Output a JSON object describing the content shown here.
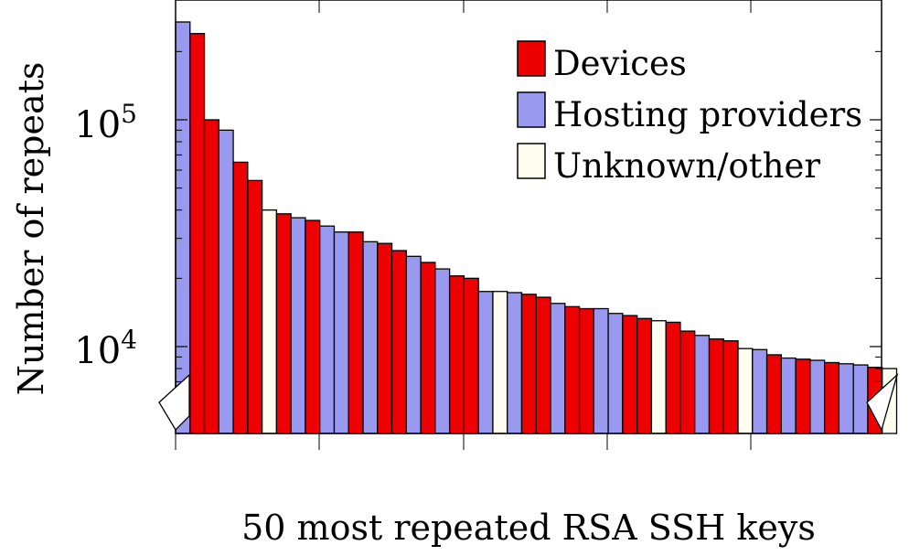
{
  "chart_data": {
    "type": "bar",
    "title": "",
    "xlabel": "50 most repeated RSA SSH keys",
    "ylabel": "Number of repeats",
    "yscale": "log",
    "ylim": [
      4200,
      270000
    ],
    "ytick_labels": [
      {
        "value": 10000,
        "base": "10",
        "exp": "4"
      },
      {
        "value": 100000,
        "base": "10",
        "exp": "5"
      }
    ],
    "grid": false,
    "legend_position": "top-right",
    "colors": {
      "Devices": "#ee0000",
      "Hosting providers": "#9999f0",
      "Unknown/other": "#fffdf0"
    },
    "series_order": [
      "Devices",
      "Hosting providers",
      "Unknown/other"
    ],
    "categories": [
      "Hosting providers",
      "Devices",
      "Devices",
      "Hosting providers",
      "Devices",
      "Devices",
      "Unknown/other",
      "Devices",
      "Hosting providers",
      "Devices",
      "Hosting providers",
      "Hosting providers",
      "Devices",
      "Hosting providers",
      "Devices",
      "Devices",
      "Hosting providers",
      "Devices",
      "Hosting providers",
      "Devices",
      "Devices",
      "Hosting providers",
      "Unknown/other",
      "Hosting providers",
      "Devices",
      "Devices",
      "Hosting providers",
      "Devices",
      "Devices",
      "Hosting providers",
      "Hosting providers",
      "Devices",
      "Devices",
      "Unknown/other",
      "Devices",
      "Devices",
      "Hosting providers",
      "Devices",
      "Devices",
      "Unknown/other",
      "Hosting providers",
      "Devices",
      "Hosting providers",
      "Devices",
      "Hosting providers",
      "Devices",
      "Hosting providers",
      "Hosting providers",
      "Devices",
      "Unknown/other"
    ],
    "values": [
      270000,
      240000,
      100000,
      90000,
      65000,
      54000,
      40000,
      38500,
      37000,
      36000,
      34000,
      32000,
      32000,
      29000,
      28500,
      26500,
      25000,
      23500,
      22000,
      20500,
      20000,
      17500,
      17500,
      17300,
      17000,
      16500,
      15500,
      15000,
      14700,
      14700,
      14000,
      13700,
      13300,
      13000,
      12800,
      11700,
      11200,
      10800,
      10600,
      9800,
      9700,
      9200,
      8900,
      8800,
      8700,
      8500,
      8400,
      8300,
      8100,
      8000
    ]
  }
}
